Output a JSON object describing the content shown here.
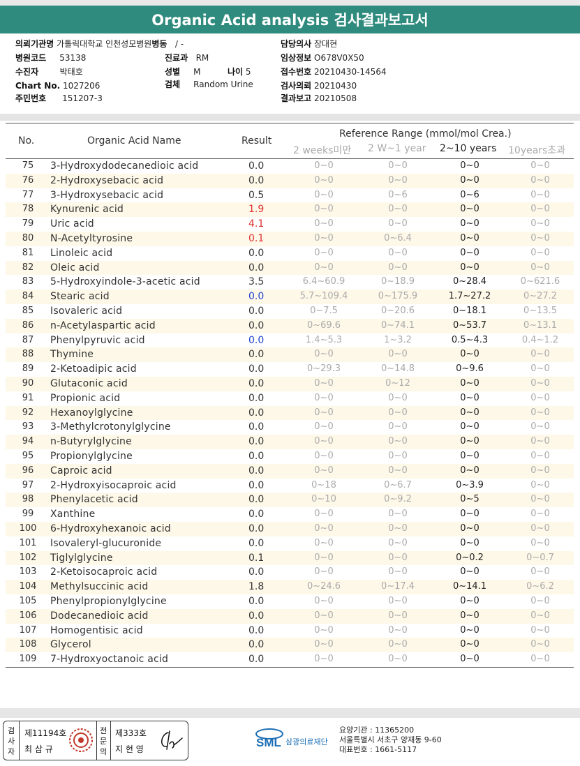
{
  "title": "Organic Acid analysis 검사결과보고서",
  "info": {
    "institution_label": "의뢰기관명",
    "institution_value": "가톨릭대학교 인천성모병원",
    "ward_label": "병동",
    "ward_value": "/ -",
    "hospital_code_label": "병원코드",
    "hospital_code_value": "53138",
    "department_label": "진료과",
    "department_value": "RM",
    "collector_label": "수진자",
    "collector_value": "박태호",
    "sex_label": "성별",
    "sex_value": "M",
    "age_label": "나이",
    "age_value": "5",
    "chart_label": "Chart No.",
    "chart_value": "1027206",
    "specimen_label": "검체",
    "specimen_value": "Random Urine",
    "id_label": "주민번호",
    "id_value": "151207-3",
    "doctor_label": "담당의사",
    "doctor_value": "장대현",
    "clinical_label": "임상정보",
    "clinical_value": "O678V0X50",
    "receipt_label": "접수번호",
    "receipt_value": "20210430-14564",
    "request_label": "검사의뢰",
    "request_value": "20210430",
    "report_label": "결과보고",
    "report_value": "20210508"
  },
  "table": {
    "headers": {
      "no": "No.",
      "name": "Organic Acid Name",
      "result": "Result",
      "ref": "Reference Range (mmol/mol Crea.)",
      "r1": "2 weeks미만",
      "r2": "2 W~1 year",
      "r3": "2~10 years",
      "r4": "10years초과"
    },
    "colors": {
      "high": "#e03030",
      "low": "#2040d0",
      "normal": "#333333"
    },
    "rows": [
      {
        "no": "75",
        "name": "3-Hydroxydodecanedioic acid",
        "result": "0.0",
        "flag": "normal",
        "r1": "0~0",
        "r2": "0~0",
        "r3": "0~0",
        "r4": "0~0"
      },
      {
        "no": "76",
        "name": "2-Hydroxysebacic acid",
        "result": "0.0",
        "flag": "normal",
        "r1": "0~0",
        "r2": "0~0",
        "r3": "0~0",
        "r4": "0~0"
      },
      {
        "no": "77",
        "name": "3-Hydroxysebacic acid",
        "result": "0.5",
        "flag": "normal",
        "r1": "0~0",
        "r2": "0~6",
        "r3": "0~6",
        "r4": "0~0"
      },
      {
        "no": "78",
        "name": "Kynurenic acid",
        "result": "1.9",
        "flag": "high",
        "r1": "0~0",
        "r2": "0~0",
        "r3": "0~0",
        "r4": "0~0"
      },
      {
        "no": "79",
        "name": "Uric acid",
        "result": "4.1",
        "flag": "high",
        "r1": "0~0",
        "r2": "0~0",
        "r3": "0~0",
        "r4": "0~0"
      },
      {
        "no": "80",
        "name": "N-Acetyltyrosine",
        "result": "0.1",
        "flag": "high",
        "r1": "0~0",
        "r2": "0~6.4",
        "r3": "0~0",
        "r4": "0~0"
      },
      {
        "no": "81",
        "name": "Linoleic acid",
        "result": "0.0",
        "flag": "normal",
        "r1": "0~0",
        "r2": "0~0",
        "r3": "0~0",
        "r4": "0~0"
      },
      {
        "no": "82",
        "name": "Oleic acid",
        "result": "0.0",
        "flag": "normal",
        "r1": "0~0",
        "r2": "0~0",
        "r3": "0~0",
        "r4": "0~0"
      },
      {
        "no": "83",
        "name": "5-Hydroxyindole-3-acetic acid",
        "result": "3.5",
        "flag": "normal",
        "r1": "6.4~60.9",
        "r2": "0~18.9",
        "r3": "0~28.4",
        "r4": "0~621.6"
      },
      {
        "no": "84",
        "name": "Stearic acid",
        "result": "0.0",
        "flag": "low",
        "r1": "5.7~109.4",
        "r2": "0~175.9",
        "r3": "1.7~27.2",
        "r4": "0~27.2"
      },
      {
        "no": "85",
        "name": "Isovaleric acid",
        "result": "0.0",
        "flag": "normal",
        "r1": "0~7.5",
        "r2": "0~20.6",
        "r3": "0~18.1",
        "r4": "0~13.5"
      },
      {
        "no": "86",
        "name": "n-Acetylaspartic acid",
        "result": "0.0",
        "flag": "normal",
        "r1": "0~69.6",
        "r2": "0~74.1",
        "r3": "0~53.7",
        "r4": "0~13.1"
      },
      {
        "no": "87",
        "name": "Phenylpyruvic acid",
        "result": "0.0",
        "flag": "low",
        "r1": "1.4~5.3",
        "r2": "1~3.2",
        "r3": "0.5~4.3",
        "r4": "0.4~1.2"
      },
      {
        "no": "88",
        "name": "Thymine",
        "result": "0.0",
        "flag": "normal",
        "r1": "0~0",
        "r2": "0~0",
        "r3": "0~0",
        "r4": "0~0"
      },
      {
        "no": "89",
        "name": "2-Ketoadipic acid",
        "result": "0.0",
        "flag": "normal",
        "r1": "0~29.3",
        "r2": "0~14.8",
        "r3": "0~9.6",
        "r4": "0~0"
      },
      {
        "no": "90",
        "name": "Glutaconic acid",
        "result": "0.0",
        "flag": "normal",
        "r1": "0~0",
        "r2": "0~12",
        "r3": "0~0",
        "r4": "0~0"
      },
      {
        "no": "91",
        "name": "Propionic acid",
        "result": "0.0",
        "flag": "normal",
        "r1": "0~0",
        "r2": "0~0",
        "r3": "0~0",
        "r4": "0~0"
      },
      {
        "no": "92",
        "name": "Hexanoylglycine",
        "result": "0.0",
        "flag": "normal",
        "r1": "0~0",
        "r2": "0~0",
        "r3": "0~0",
        "r4": "0~0"
      },
      {
        "no": "93",
        "name": "3-Methylcrotonylglycine",
        "result": "0.0",
        "flag": "normal",
        "r1": "0~0",
        "r2": "0~0",
        "r3": "0~0",
        "r4": "0~0"
      },
      {
        "no": "94",
        "name": "n-Butyrylglycine",
        "result": "0.0",
        "flag": "normal",
        "r1": "0~0",
        "r2": "0~0",
        "r3": "0~0",
        "r4": "0~0"
      },
      {
        "no": "95",
        "name": "Propionylglycine",
        "result": "0.0",
        "flag": "normal",
        "r1": "0~0",
        "r2": "0~0",
        "r3": "0~0",
        "r4": "0~0"
      },
      {
        "no": "96",
        "name": "Caproic acid",
        "result": "0.0",
        "flag": "normal",
        "r1": "0~0",
        "r2": "0~0",
        "r3": "0~0",
        "r4": "0~0"
      },
      {
        "no": "97",
        "name": "2-Hydroxyisocaproic acid",
        "result": "0.0",
        "flag": "normal",
        "r1": "0~18",
        "r2": "0~6.7",
        "r3": "0~3.9",
        "r4": "0~0"
      },
      {
        "no": "98",
        "name": "Phenylacetic acid",
        "result": "0.0",
        "flag": "normal",
        "r1": "0~10",
        "r2": "0~9.2",
        "r3": "0~5",
        "r4": "0~0"
      },
      {
        "no": "99",
        "name": "Xanthine",
        "result": "0.0",
        "flag": "normal",
        "r1": "0~0",
        "r2": "0~0",
        "r3": "0~0",
        "r4": "0~0"
      },
      {
        "no": "100",
        "name": "6-Hydroxyhexanoic acid",
        "result": "0.0",
        "flag": "normal",
        "r1": "0~0",
        "r2": "0~0",
        "r3": "0~0",
        "r4": "0~0"
      },
      {
        "no": "101",
        "name": "Isovaleryl-glucuronide",
        "result": "0.0",
        "flag": "normal",
        "r1": "0~0",
        "r2": "0~0",
        "r3": "0~0",
        "r4": "0~0"
      },
      {
        "no": "102",
        "name": "Tiglylglycine",
        "result": "0.1",
        "flag": "normal",
        "r1": "0~0",
        "r2": "0~0",
        "r3": "0~0.2",
        "r4": "0~0.7"
      },
      {
        "no": "103",
        "name": "2-Ketoisocaproic acid",
        "result": "0.0",
        "flag": "normal",
        "r1": "0~0",
        "r2": "0~0",
        "r3": "0~0",
        "r4": "0~0"
      },
      {
        "no": "104",
        "name": "Methylsuccinic acid",
        "result": "1.8",
        "flag": "normal",
        "r1": "0~24.6",
        "r2": "0~17.4",
        "r3": "0~14.1",
        "r4": "0~6.2"
      },
      {
        "no": "105",
        "name": "Phenylpropionylglycine",
        "result": "0.0",
        "flag": "normal",
        "r1": "0~0",
        "r2": "0~0",
        "r3": "0~0",
        "r4": "0~0"
      },
      {
        "no": "106",
        "name": "Dodecanedioic acid",
        "result": "0.0",
        "flag": "normal",
        "r1": "0~0",
        "r2": "0~0",
        "r3": "0~0",
        "r4": "0~0"
      },
      {
        "no": "107",
        "name": "Homogentisic acid",
        "result": "0.0",
        "flag": "normal",
        "r1": "0~0",
        "r2": "0~0",
        "r3": "0~0",
        "r4": "0~0"
      },
      {
        "no": "108",
        "name": "Glycerol",
        "result": "0.0",
        "flag": "normal",
        "r1": "0~0",
        "r2": "0~0",
        "r3": "0~0",
        "r4": "0~0"
      },
      {
        "no": "109",
        "name": "7-Hydroxyoctanoic acid",
        "result": "0.0",
        "flag": "normal",
        "r1": "0~0",
        "r2": "0~0",
        "r3": "0~0",
        "r4": "0~0"
      }
    ]
  },
  "footer": {
    "inspector_vlabel": "검사자",
    "inspector_license": "제11194호",
    "inspector_name": "최 삼 규",
    "reviewer_vlabel": "전문의",
    "reviewer_license": "제333호",
    "reviewer_name": "지 현 영",
    "brand": "SML",
    "foundation": "삼광의료재단",
    "org_code": "요양기관 : 11365200",
    "org_address": "서울특별시 서초구 양재동 9-60",
    "org_phone": "대표번호 : 1661-5117",
    "brand_color": "#1d6fb5",
    "stamp_color": "#c0392b"
  }
}
